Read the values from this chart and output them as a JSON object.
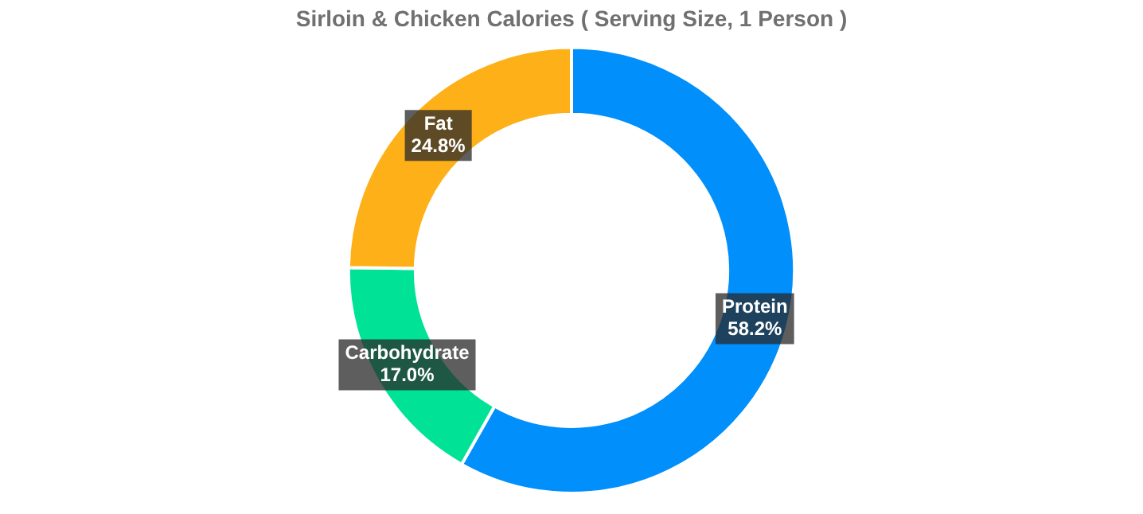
{
  "chart_data": {
    "type": "donut",
    "title": "Sirloin & Chicken Calories ( Serving Size, 1 Person )",
    "categories": [
      "Protein",
      "Carbohydrate",
      "Fat"
    ],
    "values": [
      58.2,
      17.0,
      24.8
    ],
    "value_labels": [
      "58.2%",
      "17.0%",
      "24.8%"
    ],
    "colors": [
      "#008ffb",
      "#00e396",
      "#feb019"
    ],
    "legend": false
  }
}
